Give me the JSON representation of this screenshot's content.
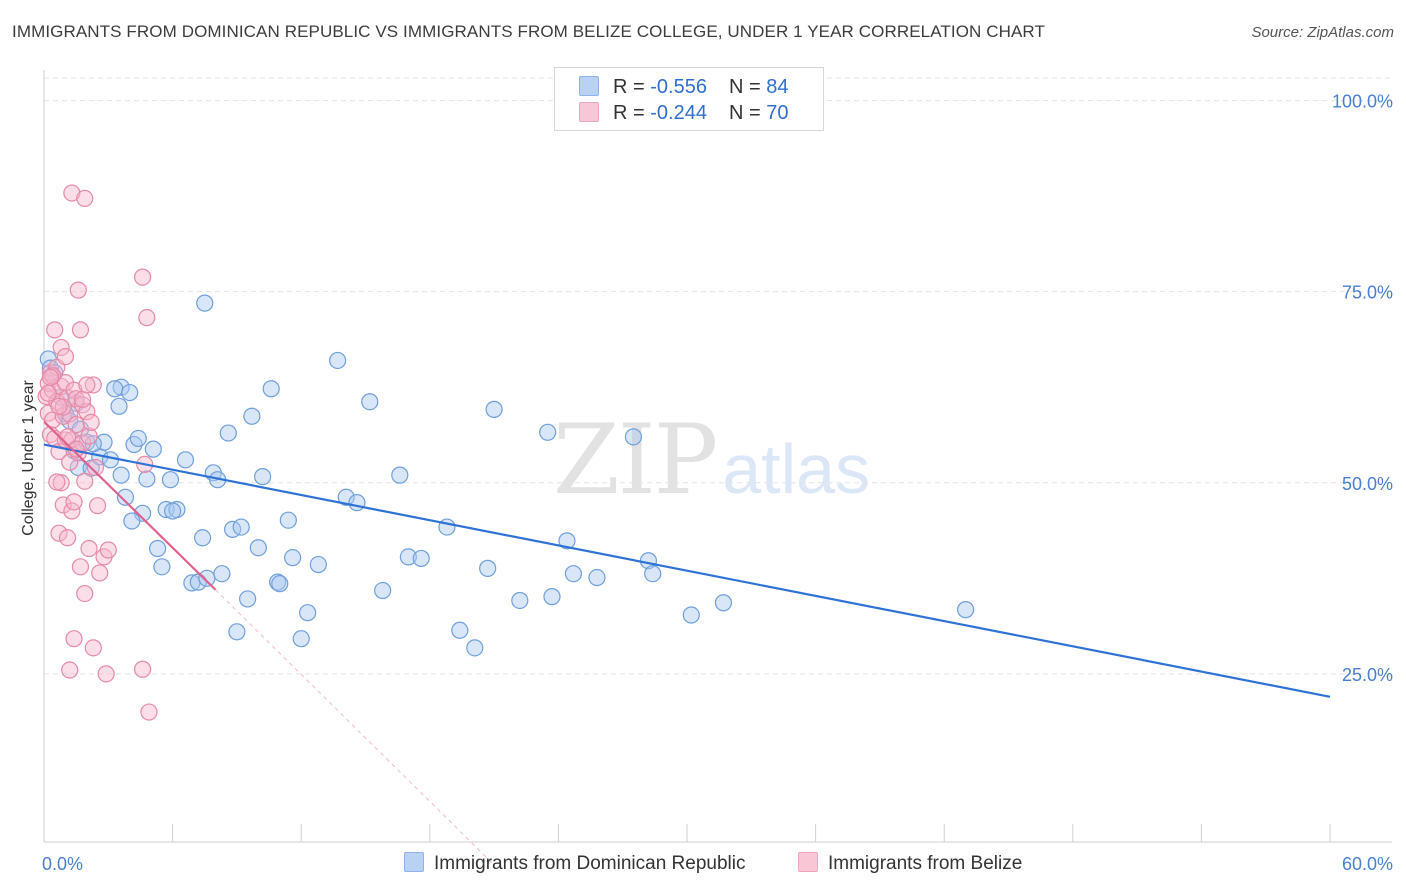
{
  "title": "IMMIGRANTS FROM DOMINICAN REPUBLIC VS IMMIGRANTS FROM BELIZE COLLEGE, UNDER 1 YEAR CORRELATION CHART",
  "source": "Source: ZipAtlas.com",
  "watermark": {
    "zip": "ZIP",
    "atlas": "atlas"
  },
  "legend": {
    "rows": [
      {
        "r_label": "R = ",
        "r_value": "-0.556",
        "n_label": "N = ",
        "n_value": "84"
      },
      {
        "r_label": "R = ",
        "r_value": "-0.244",
        "n_label": "N = ",
        "n_value": "70"
      }
    ]
  },
  "colors": {
    "blue_fill": "#a9c8ef",
    "blue_stroke": "#6f9fdc",
    "blue_line": "#2f72d6",
    "pink_fill": "#f6b6cb",
    "pink_stroke": "#e68aa8",
    "pink_line": "#e0608e",
    "grid": "#e3e3e3",
    "tick": "#4a7fd0"
  },
  "chart_data": {
    "type": "scatter",
    "title": "IMMIGRANTS FROM DOMINICAN REPUBLIC VS IMMIGRANTS FROM BELIZE COLLEGE, UNDER 1 YEAR CORRELATION CHART",
    "xlabel": "",
    "ylabel": "College, Under 1 year",
    "xlim": [
      0,
      60
    ],
    "ylim": [
      3,
      104
    ],
    "x_tick_labels": [
      "0.0%",
      "60.0%"
    ],
    "y_ticks": [
      25,
      50,
      75,
      100
    ],
    "y_tick_labels": [
      "25.0%",
      "50.0%",
      "75.0%",
      "100.0%"
    ],
    "legend_position": "top-center",
    "series": [
      {
        "name": "Immigrants from Dominican Republic",
        "r": -0.556,
        "n": 84,
        "trend": {
          "x0": 0,
          "y0": 55.0,
          "x1": 60,
          "y1": 22.0
        },
        "points": [
          [
            0.2,
            66.2
          ],
          [
            0.3,
            65.0
          ],
          [
            0.5,
            64.4
          ],
          [
            0.8,
            61.2
          ],
          [
            1.0,
            59.0
          ],
          [
            1.2,
            58.1
          ],
          [
            1.4,
            54.2
          ],
          [
            1.6,
            52.0
          ],
          [
            1.7,
            57.0
          ],
          [
            2.0,
            55.3
          ],
          [
            2.2,
            51.9
          ],
          [
            3.6,
            62.5
          ],
          [
            2.6,
            53.4
          ],
          [
            2.8,
            55.3
          ],
          [
            3.1,
            53.0
          ],
          [
            3.3,
            62.3
          ],
          [
            3.5,
            60.0
          ],
          [
            3.6,
            51.0
          ],
          [
            3.8,
            48.1
          ],
          [
            4.0,
            61.8
          ],
          [
            4.2,
            55.0
          ],
          [
            4.4,
            55.8
          ],
          [
            4.6,
            46.0
          ],
          [
            4.8,
            50.5
          ],
          [
            5.1,
            54.4
          ],
          [
            5.3,
            41.4
          ],
          [
            5.5,
            39.0
          ],
          [
            5.7,
            46.5
          ],
          [
            5.9,
            50.4
          ],
          [
            6.2,
            46.5
          ],
          [
            7.5,
            73.5
          ],
          [
            6.6,
            53.0
          ],
          [
            6.9,
            36.9
          ],
          [
            7.2,
            37.0
          ],
          [
            7.4,
            42.8
          ],
          [
            7.6,
            37.5
          ],
          [
            7.9,
            51.3
          ],
          [
            8.1,
            50.4
          ],
          [
            8.3,
            38.1
          ],
          [
            8.6,
            56.5
          ],
          [
            8.8,
            43.9
          ],
          [
            9.0,
            30.5
          ],
          [
            9.2,
            44.2
          ],
          [
            9.5,
            34.8
          ],
          [
            9.7,
            58.7
          ],
          [
            10.0,
            41.5
          ],
          [
            10.2,
            50.8
          ],
          [
            10.6,
            62.3
          ],
          [
            10.9,
            37.0
          ],
          [
            11.0,
            36.8
          ],
          [
            11.4,
            45.1
          ],
          [
            11.6,
            40.2
          ],
          [
            12.0,
            29.6
          ],
          [
            12.3,
            33.0
          ],
          [
            12.8,
            39.3
          ],
          [
            13.7,
            66.0
          ],
          [
            14.1,
            48.1
          ],
          [
            14.6,
            47.4
          ],
          [
            15.2,
            60.6
          ],
          [
            15.8,
            35.9
          ],
          [
            16.6,
            51.0
          ],
          [
            17.0,
            40.3
          ],
          [
            17.6,
            40.1
          ],
          [
            18.8,
            44.2
          ],
          [
            19.4,
            30.7
          ],
          [
            20.1,
            28.4
          ],
          [
            20.7,
            38.8
          ],
          [
            21.0,
            59.6
          ],
          [
            22.2,
            34.6
          ],
          [
            23.5,
            56.6
          ],
          [
            23.7,
            35.1
          ],
          [
            24.4,
            42.4
          ],
          [
            24.7,
            38.1
          ],
          [
            25.8,
            37.6
          ],
          [
            27.5,
            56.0
          ],
          [
            28.2,
            39.8
          ],
          [
            28.4,
            38.1
          ],
          [
            30.2,
            32.7
          ],
          [
            31.7,
            34.3
          ],
          [
            43.0,
            33.4
          ],
          [
            1.5,
            60.4
          ],
          [
            6.0,
            46.3
          ],
          [
            2.3,
            55.1
          ],
          [
            4.1,
            45.0
          ]
        ]
      },
      {
        "name": "Immigrants from Belize",
        "r": -0.244,
        "n": 70,
        "trend": {
          "x0": 0,
          "y0": 58.0,
          "x1": 8,
          "y1": 36.0,
          "dash_x1": 21,
          "dash_y1": 0
        },
        "points": [
          [
            0.1,
            61.3
          ],
          [
            0.2,
            63.0
          ],
          [
            0.2,
            59.1
          ],
          [
            0.3,
            56.3
          ],
          [
            0.3,
            64.4
          ],
          [
            0.4,
            62.1
          ],
          [
            0.4,
            58.2
          ],
          [
            0.5,
            70.0
          ],
          [
            0.5,
            55.8
          ],
          [
            0.6,
            65.1
          ],
          [
            0.6,
            60.6
          ],
          [
            0.7,
            54.1
          ],
          [
            0.7,
            43.4
          ],
          [
            0.8,
            67.7
          ],
          [
            0.8,
            62.6
          ],
          [
            0.8,
            50.0
          ],
          [
            0.9,
            58.7
          ],
          [
            0.9,
            47.1
          ],
          [
            1.0,
            66.5
          ],
          [
            1.0,
            63.1
          ],
          [
            1.0,
            55.6
          ],
          [
            1.1,
            61.1
          ],
          [
            1.1,
            42.8
          ],
          [
            1.2,
            59.0
          ],
          [
            1.2,
            52.7
          ],
          [
            1.3,
            55.6
          ],
          [
            1.3,
            46.3
          ],
          [
            1.3,
            87.9
          ],
          [
            1.4,
            62.1
          ],
          [
            1.4,
            47.5
          ],
          [
            1.4,
            29.6
          ],
          [
            1.5,
            61.0
          ],
          [
            1.5,
            57.6
          ],
          [
            1.6,
            75.2
          ],
          [
            1.6,
            53.9
          ],
          [
            1.7,
            70.0
          ],
          [
            1.7,
            39.0
          ],
          [
            1.8,
            60.2
          ],
          [
            1.8,
            55.2
          ],
          [
            1.9,
            87.2
          ],
          [
            1.9,
            50.2
          ],
          [
            1.9,
            35.5
          ],
          [
            2.0,
            59.3
          ],
          [
            2.1,
            41.4
          ],
          [
            2.1,
            56.1
          ],
          [
            2.2,
            57.9
          ],
          [
            2.3,
            62.8
          ],
          [
            2.3,
            28.4
          ],
          [
            2.4,
            52.0
          ],
          [
            2.5,
            47.0
          ],
          [
            2.6,
            38.2
          ],
          [
            2.8,
            40.3
          ],
          [
            2.9,
            25.0
          ],
          [
            3.0,
            41.2
          ],
          [
            0.2,
            61.7
          ],
          [
            0.4,
            64.0
          ],
          [
            0.6,
            50.1
          ],
          [
            0.9,
            59.9
          ],
          [
            1.1,
            56.0
          ],
          [
            1.2,
            25.5
          ],
          [
            1.5,
            54.4
          ],
          [
            1.8,
            60.9
          ],
          [
            2.0,
            62.8
          ],
          [
            4.6,
            76.9
          ],
          [
            4.7,
            52.4
          ],
          [
            4.9,
            20.0
          ],
          [
            4.6,
            25.6
          ],
          [
            4.8,
            71.6
          ],
          [
            0.3,
            63.8
          ],
          [
            0.7,
            60.0
          ]
        ]
      }
    ]
  },
  "bottom_legend": {
    "items": [
      {
        "label": "Immigrants from Dominican Republic"
      },
      {
        "label": "Immigrants from Belize"
      }
    ]
  }
}
